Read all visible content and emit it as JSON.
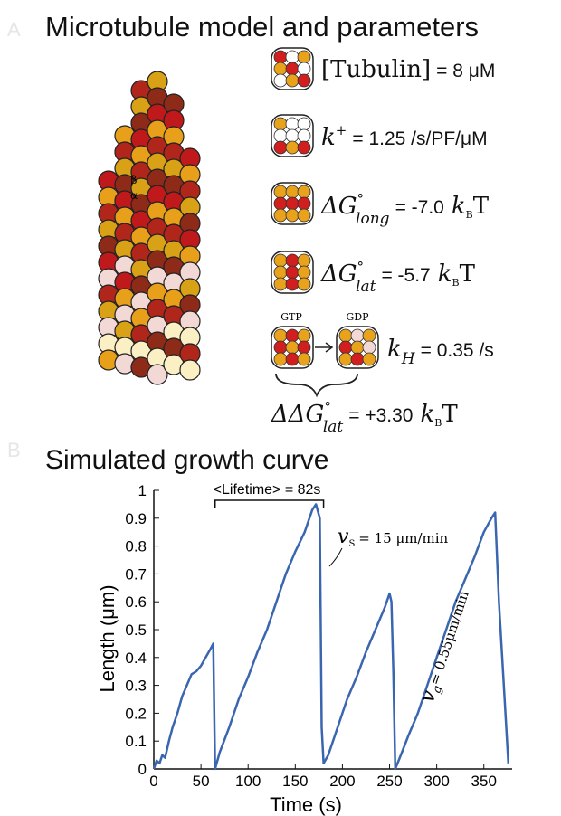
{
  "panel_a": {
    "label": "A",
    "title": "Microtubule model and parameters",
    "subunit_labels": [
      "β",
      "α"
    ],
    "nucleotide_labels": [
      "GTP",
      "GDP"
    ],
    "params": [
      {
        "symbol": "[Tubulin]",
        "value": "= 8 μM"
      },
      {
        "symbol": "k",
        "sup": "+",
        "value": "= 1.25 /s/PF/μM"
      },
      {
        "symbol": "ΔG",
        "sup": "°",
        "sub": "long",
        "value": "= -7.0",
        "unit": "k",
        "unit_sub": "B",
        "unit_tail": "T"
      },
      {
        "symbol": "ΔG",
        "sup": "°",
        "sub": "lat",
        "value": "= -5.7",
        "unit": "k",
        "unit_sub": "B",
        "unit_tail": "T"
      },
      {
        "symbol": "k",
        "sub": "H",
        "value": "= 0.35 /s"
      },
      {
        "symbol": "ΔΔG",
        "sup": "°",
        "sub": "lat",
        "value": "= +3.30",
        "unit": "k",
        "unit_sub": "B",
        "unit_tail": "T"
      }
    ]
  },
  "panel_b": {
    "label": "B"
  },
  "chart_data": {
    "type": "line",
    "title": "Simulated growth curve",
    "x_label": "Time (s)",
    "y_label": "Length (μm)",
    "xlim": [
      0,
      380
    ],
    "ylim": [
      0,
      1
    ],
    "xticks": [
      0,
      50,
      100,
      150,
      200,
      250,
      300,
      350
    ],
    "yticks": [
      0,
      0.1,
      0.2,
      0.3,
      0.4,
      0.5,
      0.6,
      0.7,
      0.8,
      0.9,
      1
    ],
    "annotations": {
      "lifetime": "<Lifetime> = 82s",
      "shrink_symbol": "v",
      "shrink_sub": "S",
      "shrink_text": "= 15 μm/min",
      "grow_symbol": "v",
      "grow_sub": "g",
      "grow_text": "= 0.55μm/min"
    },
    "series": [
      {
        "color": "#3a66b0",
        "x": [
          0,
          3,
          6,
          9,
          12,
          16,
          20,
          25,
          30,
          35,
          40,
          45,
          50,
          55,
          60,
          63,
          65,
          70,
          80,
          90,
          100,
          110,
          120,
          130,
          140,
          150,
          160,
          168,
          172,
          176,
          178,
          180,
          185,
          195,
          205,
          215,
          225,
          235,
          245,
          250,
          252,
          254,
          256,
          262,
          270,
          280,
          290,
          300,
          310,
          320,
          330,
          340,
          350,
          358,
          362,
          366,
          372,
          376
        ],
        "values": [
          0,
          0.03,
          0.02,
          0.05,
          0.04,
          0.1,
          0.15,
          0.2,
          0.26,
          0.3,
          0.34,
          0.35,
          0.37,
          0.4,
          0.43,
          0.45,
          0,
          0.06,
          0.15,
          0.25,
          0.33,
          0.42,
          0.5,
          0.6,
          0.7,
          0.78,
          0.85,
          0.93,
          0.95,
          0.9,
          0.15,
          0.02,
          0.05,
          0.15,
          0.25,
          0.33,
          0.42,
          0.5,
          0.58,
          0.63,
          0.6,
          0.35,
          0,
          0.05,
          0.12,
          0.2,
          0.3,
          0.4,
          0.5,
          0.6,
          0.68,
          0.76,
          0.85,
          0.9,
          0.92,
          0.6,
          0.25,
          0.02
        ]
      }
    ]
  }
}
